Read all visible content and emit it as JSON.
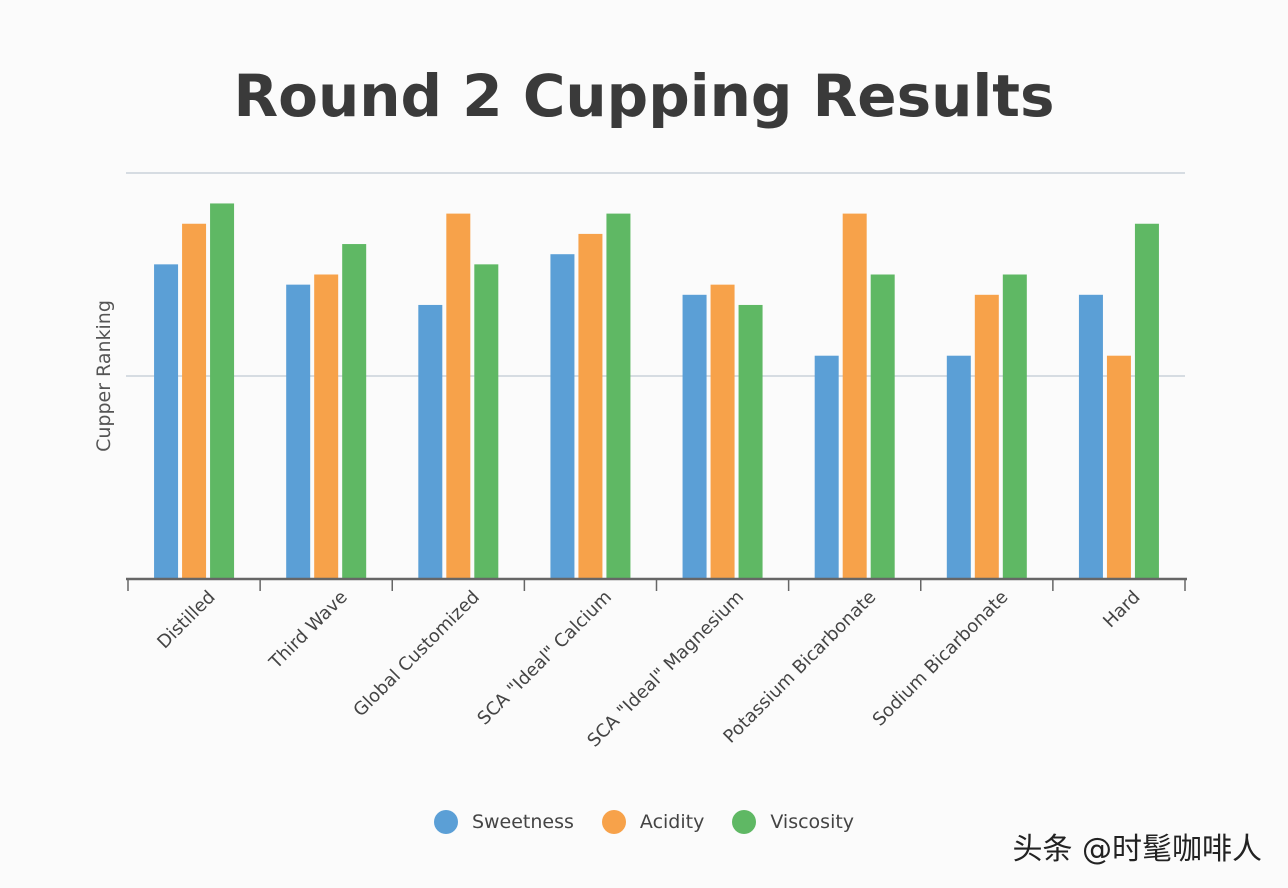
{
  "chart_data": {
    "type": "bar",
    "title": "Round 2 Cupping Results",
    "xlabel": "",
    "ylabel": "Cupper Ranking",
    "ylim": [
      0,
      80
    ],
    "gridlines": [
      40,
      80
    ],
    "categories": [
      "Distilled",
      "Third Wave",
      "Global Customized",
      "SCA \"Ideal\" Calcium",
      "SCA \"Ideal\" Magnesium",
      "Potassium Bicarbonate",
      "Sodium Bicarbonate",
      "Hard"
    ],
    "series": [
      {
        "name": "Sweetness",
        "color": "#5b9fd6",
        "values": [
          62,
          58,
          54,
          64,
          56,
          44,
          44,
          56
        ]
      },
      {
        "name": "Acidity",
        "color": "#f7a24a",
        "values": [
          70,
          60,
          72,
          68,
          58,
          72,
          56,
          44
        ]
      },
      {
        "name": "Viscosity",
        "color": "#5fb864",
        "values": [
          74,
          66,
          62,
          72,
          54,
          60,
          60,
          70
        ]
      }
    ],
    "legend_position": "bottom"
  },
  "watermark": "头条 @时髦咖啡人"
}
